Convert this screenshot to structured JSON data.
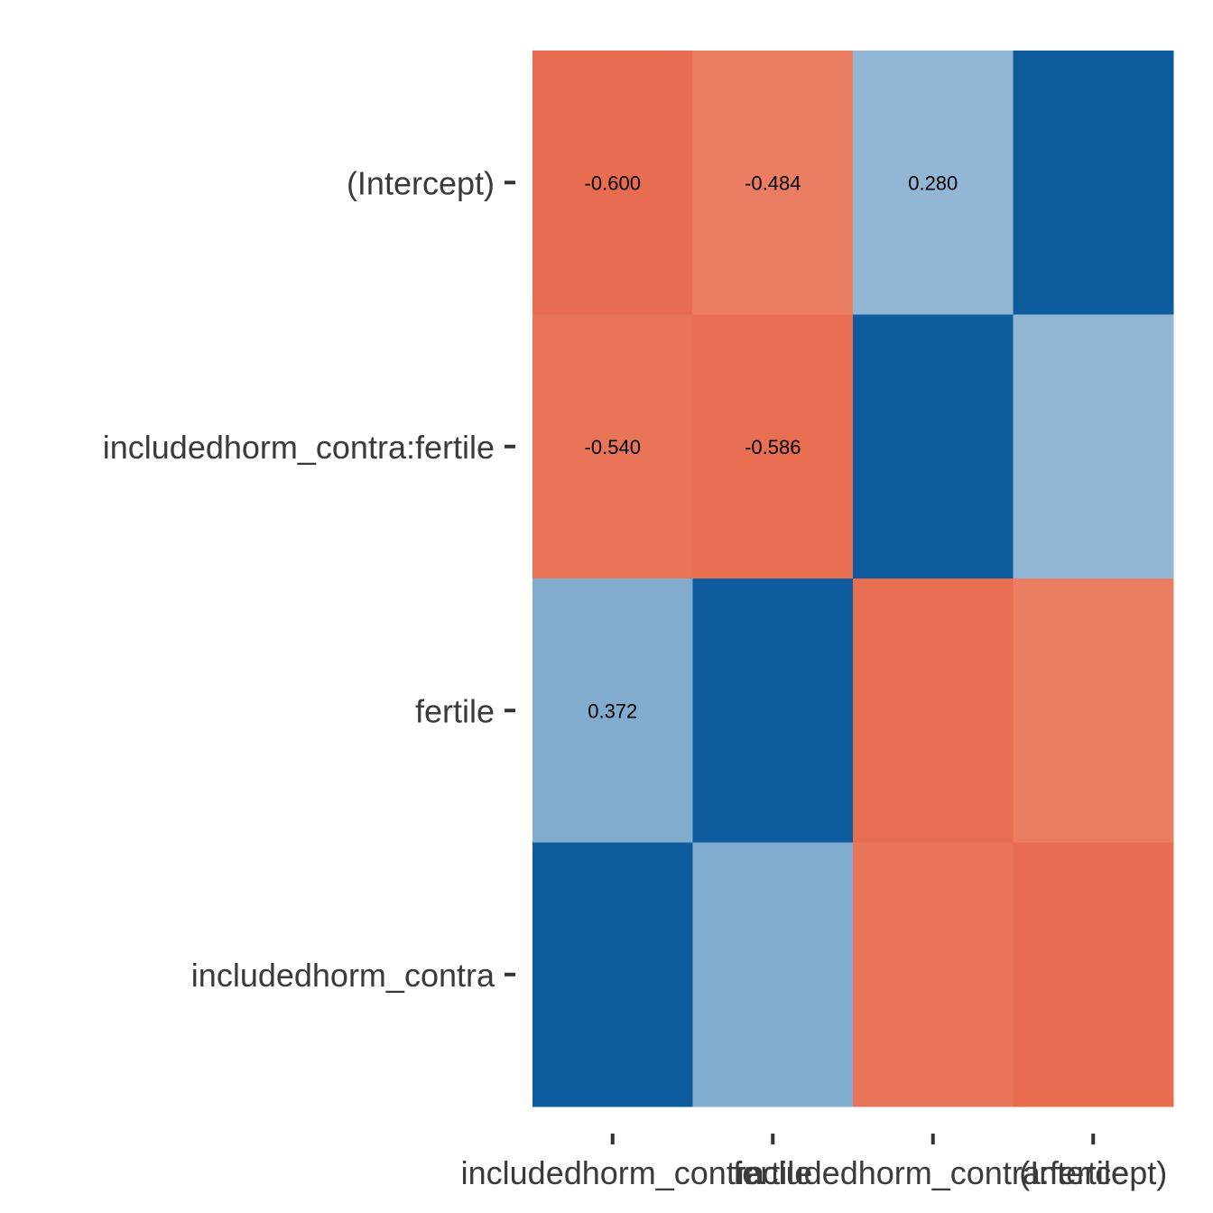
{
  "chart_data": {
    "type": "heatmap",
    "title": "",
    "xlabel": "",
    "ylabel": "",
    "x_categories": [
      "includedhorm_contra",
      "fertile",
      "includedhorm_contra:fertile",
      "(Intercept)"
    ],
    "y_categories": [
      "(Intercept)",
      "includedhorm_contra:fertile",
      "fertile",
      "includedhorm_contra"
    ],
    "values": [
      [
        -0.6,
        -0.484,
        0.28,
        1.0
      ],
      [
        -0.54,
        -0.586,
        1.0,
        0.28
      ],
      [
        0.372,
        1.0,
        -0.586,
        -0.484
      ],
      [
        1.0,
        0.372,
        -0.54,
        -0.6
      ]
    ],
    "labels": [
      [
        "-0.600",
        "-0.484",
        "0.280",
        ""
      ],
      [
        "-0.540",
        "-0.586",
        "",
        ""
      ],
      [
        "0.372",
        "",
        "",
        ""
      ],
      [
        "",
        "",
        "",
        ""
      ]
    ],
    "colors": {
      "diag": "#0e5c9e",
      "pos_0.372": "#a0c6dc",
      "pos_0.280": "#b4d2e2",
      "neg_-0.600": "#e9785a",
      "neg_-0.586": "#e97b5c",
      "neg_-0.540": "#ec8966",
      "neg_-0.484": "#f09572"
    },
    "grid": false,
    "legend": "none"
  }
}
